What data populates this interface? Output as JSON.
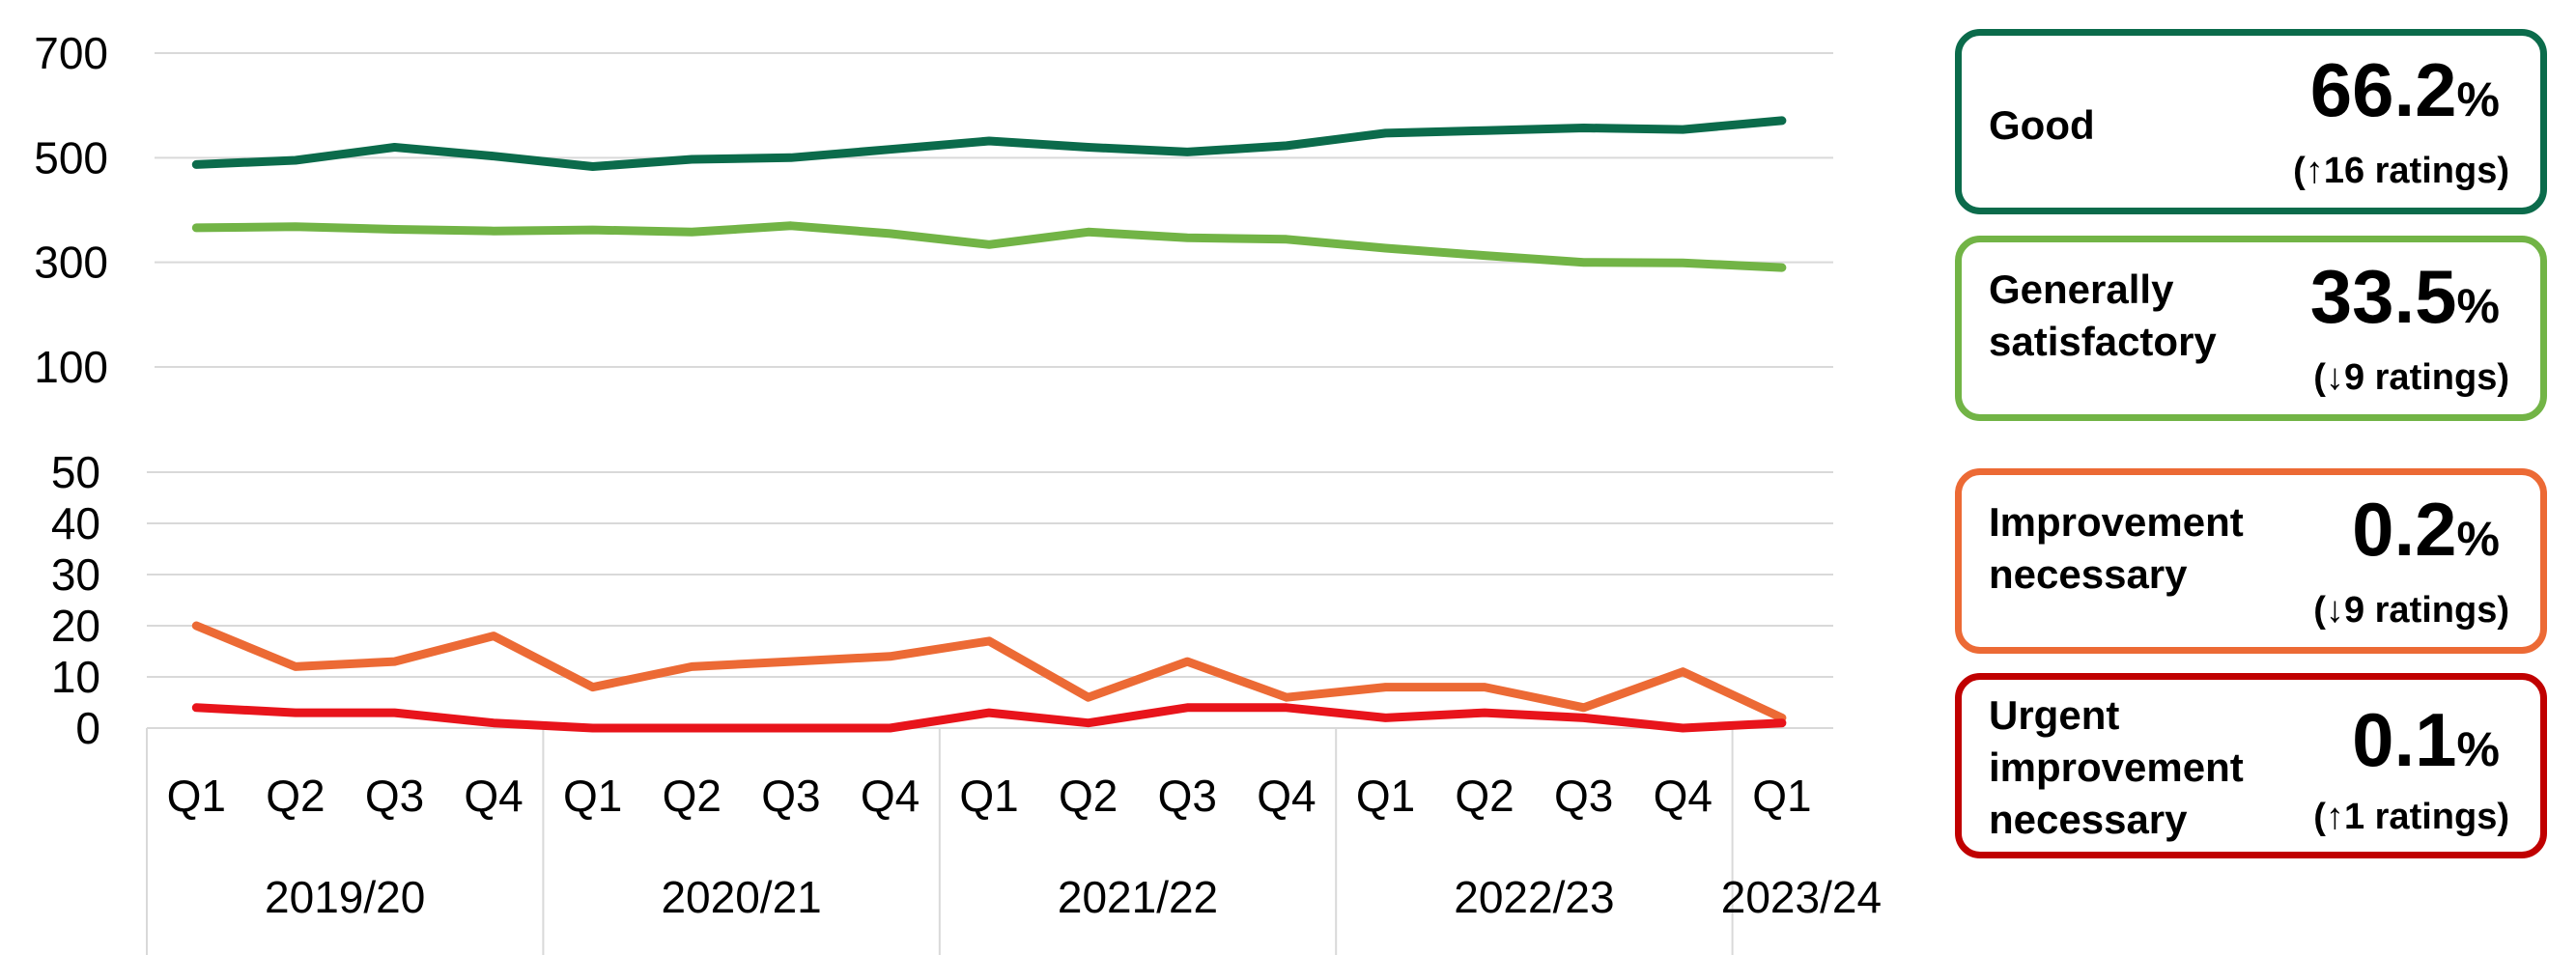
{
  "chart_data": {
    "type": "line",
    "y_ticks_upper": [
      "700",
      "500",
      "300",
      "100"
    ],
    "y_ticks_lower": [
      "50",
      "40",
      "30",
      "20",
      "10",
      "0"
    ],
    "categories": [
      "Q1",
      "Q2",
      "Q3",
      "Q4",
      "Q1",
      "Q2",
      "Q3",
      "Q4",
      "Q1",
      "Q2",
      "Q3",
      "Q4",
      "Q1",
      "Q2",
      "Q3",
      "Q4",
      "Q1"
    ],
    "groups": [
      {
        "label": "2019/20",
        "count": 4
      },
      {
        "label": "2020/21",
        "count": 4
      },
      {
        "label": "2021/22",
        "count": 4
      },
      {
        "label": "2022/23",
        "count": 4
      },
      {
        "label": "2023/24",
        "count": 1
      }
    ],
    "series": [
      {
        "name": "Good",
        "color": "#0b6b4b",
        "axis": "upper",
        "values": [
          487,
          495,
          520,
          503,
          483,
          497,
          500,
          516,
          532,
          520,
          511,
          523,
          547,
          552,
          557,
          554,
          571
        ]
      },
      {
        "name": "Generally satisfactory",
        "color": "#72b446",
        "axis": "upper",
        "values": [
          366,
          368,
          363,
          360,
          362,
          358,
          370,
          355,
          334,
          358,
          347,
          344,
          327,
          313,
          300,
          299,
          290
        ]
      },
      {
        "name": "Improvement necessary",
        "color": "#ec6a35",
        "axis": "lower",
        "values": [
          20,
          12,
          13,
          18,
          8,
          12,
          13,
          14,
          17,
          6,
          13,
          6,
          8,
          8,
          4,
          11,
          2
        ]
      },
      {
        "name": "Urgent improvement necessary",
        "color": "#e8141b",
        "axis": "lower",
        "values": [
          4,
          3,
          3,
          1,
          0,
          0,
          0,
          0,
          3,
          1,
          4,
          4,
          2,
          3,
          2,
          0,
          1
        ]
      }
    ],
    "upper_ylim": [
      100,
      700
    ],
    "lower_ylim": [
      0,
      50
    ],
    "grid": true,
    "legend": "right"
  },
  "cards": [
    {
      "label": "Good",
      "percent": "66.2",
      "percent_symbol": "%",
      "change_arrow": "↑",
      "change_text": "16 ratings",
      "color": "#0b6b4b"
    },
    {
      "label": "Generally\nsatisfactory",
      "percent": "33.5",
      "percent_symbol": "%",
      "change_arrow": "↓",
      "change_text": "9 ratings",
      "color": "#72b446"
    },
    {
      "label": "Improvement\nnecessary",
      "percent": "0.2",
      "percent_symbol": "%",
      "change_arrow": "↓",
      "change_text": "9 ratings",
      "color": "#ec6a35"
    },
    {
      "label": "Urgent\nimprovement\nnecessary",
      "percent": "0.1",
      "percent_symbol": "%",
      "change_arrow": "↑",
      "change_text": "1 ratings",
      "color": "#c00000"
    }
  ]
}
